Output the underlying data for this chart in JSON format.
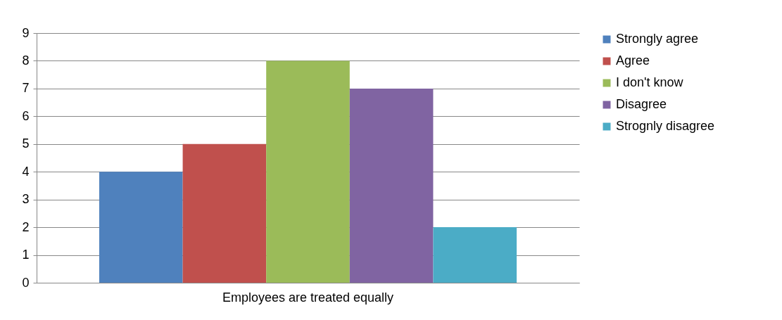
{
  "chart_data": {
    "type": "bar",
    "categories": [
      "Employees are treated equally"
    ],
    "series": [
      {
        "name": "Strongly agree",
        "color": "#4f81bd",
        "values": [
          4
        ]
      },
      {
        "name": "Agree",
        "color": "#c0504d",
        "values": [
          5
        ]
      },
      {
        "name": "I don't know",
        "color": "#9bbb59",
        "values": [
          8
        ]
      },
      {
        "name": "Disagree",
        "color": "#8064a2",
        "values": [
          7
        ]
      },
      {
        "name": "Strognly disagree",
        "color": "#4bacc6",
        "values": [
          2
        ]
      }
    ],
    "ylim": [
      0,
      9
    ],
    "yticks": [
      0,
      1,
      2,
      3,
      4,
      5,
      6,
      7,
      8,
      9
    ],
    "grid": "y",
    "legend": "right"
  }
}
